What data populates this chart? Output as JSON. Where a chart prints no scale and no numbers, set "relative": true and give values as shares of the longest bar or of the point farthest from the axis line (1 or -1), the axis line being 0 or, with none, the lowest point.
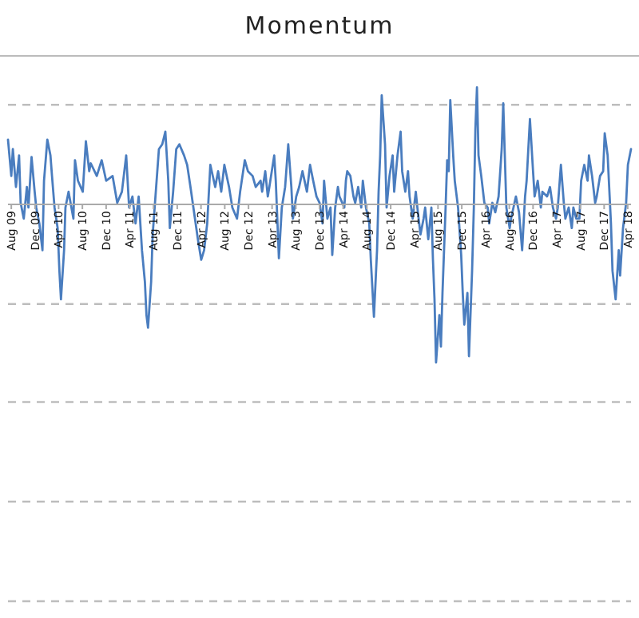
{
  "chart_data": {
    "type": "line",
    "title": "Momentum",
    "relative": true,
    "ref_lines": [
      {
        "axis": "y",
        "value": 0.63,
        "color": "#bdbdbd",
        "line_style": "dashed"
      },
      {
        "axis": "y",
        "value": -0.63,
        "color": "#bdbdbd",
        "line_style": "dashed"
      },
      {
        "axis": "y",
        "value": -1.25,
        "color": "#bdbdbd",
        "line_style": "dashed"
      },
      {
        "axis": "y",
        "value": -1.88,
        "color": "#bdbdbd",
        "line_style": "dashed"
      },
      {
        "axis": "y",
        "value": -2.51,
        "color": "#bdbdbd",
        "line_style": "dashed"
      }
    ],
    "marker": "none",
    "line_style": "solid",
    "xlim": [
      "2009-07-15",
      "2018-04-18"
    ],
    "xticks": [
      {
        "value": "2009-08",
        "label": "Aug 09"
      },
      {
        "value": "2009-12",
        "label": "Dec 09"
      },
      {
        "value": "2010-04",
        "label": "Apr 10"
      },
      {
        "value": "2010-08",
        "label": "Aug 10"
      },
      {
        "value": "2010-12",
        "label": "Dec 10"
      },
      {
        "value": "2011-04",
        "label": "Apr 11"
      },
      {
        "value": "2011-08",
        "label": "Aug 11"
      },
      {
        "value": "2011-12",
        "label": "Dec 11"
      },
      {
        "value": "2012-04",
        "label": "Apr 12"
      },
      {
        "value": "2012-08",
        "label": "Aug 12"
      },
      {
        "value": "2012-12",
        "label": "Dec 12"
      },
      {
        "value": "2013-04",
        "label": "Apr 13"
      },
      {
        "value": "2013-08",
        "label": "Aug 13"
      },
      {
        "value": "2013-12",
        "label": "Dec 13"
      },
      {
        "value": "2014-04",
        "label": "Apr 14"
      },
      {
        "value": "2014-08",
        "label": "Aug 14"
      },
      {
        "value": "2014-12",
        "label": "Dec 14"
      },
      {
        "value": "2015-04",
        "label": "Apr 15"
      },
      {
        "value": "2015-08",
        "label": "Aug 15"
      },
      {
        "value": "2015-12",
        "label": "Dec 15"
      },
      {
        "value": "2016-04",
        "label": "Apr 16"
      },
      {
        "value": "2016-08",
        "label": "Aug 16"
      },
      {
        "value": "2016-12",
        "label": "Dec 16"
      },
      {
        "value": "2017-04",
        "label": "Apr 17"
      },
      {
        "value": "2017-08",
        "label": "Aug 17"
      },
      {
        "value": "2017-12",
        "label": "Dec 17"
      },
      {
        "value": "2018-04",
        "label": "Apr 18"
      }
    ],
    "series": [
      {
        "color": "#4a7dbf",
        "x": [
          "2009-07-15",
          "2009-08-01",
          "2009-08-09",
          "2009-08-25",
          "2009-09-10",
          "2009-09-18",
          "2009-10-04",
          "2009-10-20",
          "2009-10-28",
          "2009-11-13",
          "2009-11-29",
          "2009-12-07",
          "2009-12-23",
          "2010-01-08",
          "2010-01-16",
          "2010-02-02",
          "2010-02-18",
          "2010-02-26",
          "2010-03-11",
          "2010-03-27",
          "2010-04-05",
          "2010-04-13",
          "2010-04-29",
          "2010-05-06",
          "2010-05-22",
          "2010-06-16",
          "2010-06-24",
          "2010-07-09",
          "2010-08-03",
          "2010-08-19",
          "2010-09-05",
          "2010-09-13",
          "2010-10-14",
          "2010-11-08",
          "2010-12-01",
          "2011-01-03",
          "2011-01-27",
          "2011-02-20",
          "2011-03-14",
          "2011-03-29",
          "2011-04-15",
          "2011-05-01",
          "2011-05-17",
          "2011-06-03",
          "2011-06-18",
          "2011-06-26",
          "2011-07-04",
          "2011-07-20",
          "2011-07-28",
          "2011-08-13",
          "2011-08-29",
          "2011-09-15",
          "2011-10-01",
          "2011-10-16",
          "2011-10-24",
          "2011-11-10",
          "2011-11-26",
          "2011-12-12",
          "2012-01-05",
          "2012-01-21",
          "2012-02-07",
          "2012-02-22",
          "2012-03-08",
          "2012-03-16",
          "2012-04-02",
          "2012-04-17",
          "2012-05-03",
          "2012-05-19",
          "2012-06-13",
          "2012-06-28",
          "2012-07-14",
          "2012-07-30",
          "2012-08-23",
          "2012-09-09",
          "2012-10-03",
          "2012-10-19",
          "2012-11-12",
          "2012-11-28",
          "2012-12-22",
          "2013-01-07",
          "2013-02-01",
          "2013-02-09",
          "2013-02-25",
          "2013-03-10",
          "2013-03-18",
          "2013-04-12",
          "2013-04-20",
          "2013-05-06",
          "2013-05-21",
          "2013-06-07",
          "2013-06-23",
          "2013-07-09",
          "2013-07-17",
          "2013-08-03",
          "2013-08-18",
          "2013-09-04",
          "2013-09-27",
          "2013-10-13",
          "2013-10-29",
          "2013-11-15",
          "2013-12-01",
          "2013-12-16",
          "2013-12-24",
          "2014-01-10",
          "2014-01-26",
          "2014-02-04",
          "2014-02-19",
          "2014-03-05",
          "2014-03-13",
          "2014-04-07",
          "2014-04-15",
          "2014-04-22",
          "2014-05-08",
          "2014-05-24",
          "2014-06-02",
          "2014-06-17",
          "2014-07-03",
          "2014-07-11",
          "2014-07-27",
          "2014-08-13",
          "2014-08-21",
          "2014-09-06",
          "2014-09-22",
          "2014-09-30",
          "2014-10-08",
          "2014-10-16",
          "2014-11-02",
          "2014-11-10",
          "2014-11-25",
          "2014-12-11",
          "2014-12-19",
          "2015-01-05",
          "2015-01-21",
          "2015-01-29",
          "2015-02-14",
          "2015-02-28",
          "2015-03-08",
          "2015-03-24",
          "2015-04-09",
          "2015-04-17",
          "2015-05-03",
          "2015-05-19",
          "2015-05-27",
          "2015-06-12",
          "2015-06-28",
          "2015-07-06",
          "2015-07-14",
          "2015-07-22",
          "2015-08-08",
          "2015-08-16",
          "2015-08-24",
          "2015-09-09",
          "2015-09-17",
          "2015-09-25",
          "2015-10-03",
          "2015-10-18",
          "2015-10-26",
          "2015-11-12",
          "2015-11-28",
          "2015-12-06",
          "2015-12-14",
          "2015-12-30",
          "2016-01-07",
          "2016-01-23",
          "2016-02-01",
          "2016-02-09",
          "2016-02-17",
          "2016-02-25",
          "2016-03-10",
          "2016-03-26",
          "2016-04-12",
          "2016-04-20",
          "2016-05-06",
          "2016-05-21",
          "2016-06-07",
          "2016-06-23",
          "2016-07-01",
          "2016-07-17",
          "2016-08-03",
          "2016-08-10",
          "2016-09-04",
          "2016-09-20",
          "2016-10-06",
          "2016-10-21",
          "2016-10-29",
          "2016-11-15",
          "2016-12-01",
          "2016-12-09",
          "2016-12-25",
          "2017-01-10",
          "2017-01-18",
          "2017-02-11",
          "2017-02-26",
          "2017-03-13",
          "2017-03-29",
          "2017-04-07",
          "2017-04-23",
          "2017-05-08",
          "2017-05-16",
          "2017-06-02",
          "2017-06-18",
          "2017-06-26",
          "2017-07-11",
          "2017-07-27",
          "2017-08-05",
          "2017-08-21",
          "2017-09-07",
          "2017-09-14",
          "2017-09-30",
          "2017-10-16",
          "2017-10-24",
          "2017-11-10",
          "2017-11-26",
          "2017-12-04",
          "2017-12-19",
          "2018-01-05",
          "2018-01-13",
          "2018-01-29",
          "2018-02-14",
          "2018-02-21",
          "2018-03-08",
          "2018-03-24",
          "2018-04-02",
          "2018-04-18"
        ],
        "values": [
          0.41,
          0.18,
          0.35,
          0.11,
          0.31,
          0.01,
          -0.09,
          0.11,
          -0.02,
          0.3,
          0.08,
          -0.02,
          -0.12,
          -0.29,
          0.15,
          0.41,
          0.31,
          0.18,
          -0.02,
          -0.15,
          -0.42,
          -0.6,
          -0.29,
          -0.02,
          0.08,
          -0.09,
          0.28,
          0.15,
          0.08,
          0.4,
          0.21,
          0.26,
          0.18,
          0.28,
          0.15,
          0.18,
          0.01,
          0.08,
          0.31,
          -0.02,
          0.05,
          -0.12,
          0.05,
          -0.29,
          -0.49,
          -0.7,
          -0.78,
          -0.49,
          -0.19,
          0.08,
          0.35,
          0.38,
          0.46,
          0.15,
          -0.15,
          0.08,
          0.35,
          0.38,
          0.31,
          0.25,
          0.11,
          -0.02,
          -0.15,
          -0.22,
          -0.35,
          -0.29,
          -0.12,
          0.25,
          0.11,
          0.21,
          0.08,
          0.25,
          0.11,
          -0.02,
          -0.09,
          0.08,
          0.28,
          0.21,
          0.18,
          0.11,
          0.15,
          0.08,
          0.21,
          0.05,
          0.11,
          0.31,
          0.15,
          -0.34,
          -0.02,
          0.11,
          0.38,
          0.11,
          -0.09,
          0.05,
          0.11,
          0.21,
          0.08,
          0.25,
          0.15,
          0.05,
          0.01,
          -0.12,
          0.15,
          -0.09,
          -0.02,
          -0.32,
          -0.02,
          0.11,
          0.05,
          -0.02,
          0.15,
          0.21,
          0.18,
          0.05,
          0.01,
          0.11,
          -0.02,
          0.15,
          -0.02,
          -0.12,
          -0.35,
          -0.71,
          -0.29,
          0.08,
          0.31,
          0.69,
          0.38,
          -0.02,
          0.18,
          0.31,
          0.08,
          0.31,
          0.46,
          0.21,
          0.08,
          0.21,
          0.05,
          -0.09,
          0.08,
          -0.02,
          -0.19,
          -0.09,
          -0.02,
          -0.22,
          -0.02,
          -0.35,
          -0.6,
          -1.0,
          -0.7,
          -0.9,
          -0.56,
          -0.02,
          0.28,
          0.21,
          0.66,
          0.31,
          0.15,
          -0.02,
          -0.32,
          -0.56,
          -0.76,
          -0.56,
          -0.96,
          -0.42,
          -0.02,
          0.48,
          0.74,
          0.31,
          0.18,
          0.01,
          -0.02,
          -0.12,
          0.01,
          -0.05,
          0.05,
          0.35,
          0.64,
          -0.02,
          -0.15,
          -0.09,
          0.05,
          -0.05,
          -0.29,
          0.05,
          0.15,
          0.54,
          0.21,
          0.05,
          0.15,
          -0.02,
          0.08,
          0.05,
          0.11,
          -0.02,
          -0.09,
          -0.02,
          0.25,
          0.01,
          -0.09,
          -0.02,
          -0.15,
          -0.02,
          -0.09,
          -0.09,
          0.15,
          0.25,
          0.15,
          0.31,
          0.18,
          0.01,
          0.05,
          0.18,
          0.21,
          0.45,
          0.31,
          -0.12,
          -0.42,
          -0.6,
          -0.29,
          -0.45,
          -0.15,
          0.01,
          0.25,
          0.35
        ]
      }
    ]
  }
}
